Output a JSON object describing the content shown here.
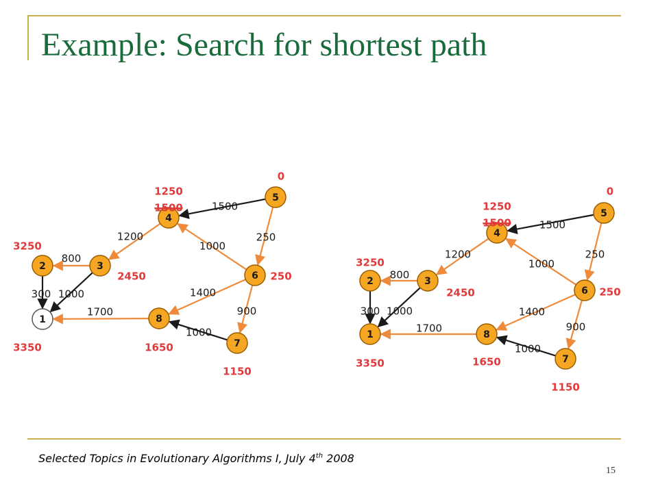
{
  "slide": {
    "title": "Example: Search for shortest path",
    "footer_text": "Selected Topics in Evolutionary Algorithms I, July 4",
    "footer_sup": "th",
    "footer_year": " 2008",
    "page_number": "15"
  },
  "colors": {
    "node_fill": "#f5a623",
    "node_stroke": "#9a5c00",
    "start_node_fill": "#ffffff",
    "orange_edge": "#ef8a3a",
    "black_edge": "#1a1a1a",
    "distance_text": "#e03a3a",
    "title": "#1a6b3c",
    "frame": "#c9ad4f"
  },
  "graphs": [
    {
      "nodes": [
        {
          "id": "1",
          "label": "1",
          "orange": false,
          "distance": "3350"
        },
        {
          "id": "2",
          "label": "2",
          "orange": true,
          "distance": "3250"
        },
        {
          "id": "3",
          "label": "3",
          "orange": true,
          "distance": "2450"
        },
        {
          "id": "4",
          "label": "4",
          "orange": true,
          "distance": "1250",
          "struck_distance": "1500"
        },
        {
          "id": "5",
          "label": "5",
          "orange": true,
          "distance": "0"
        },
        {
          "id": "6",
          "label": "6",
          "orange": true,
          "distance": "250"
        },
        {
          "id": "7",
          "label": "7",
          "orange": true,
          "distance": "1150"
        },
        {
          "id": "8",
          "label": "8",
          "orange": true,
          "distance": "1650"
        }
      ],
      "edges": [
        {
          "from": "5",
          "to": "4",
          "weight": "1500",
          "color": "black"
        },
        {
          "from": "5",
          "to": "6",
          "weight": "250",
          "color": "orange"
        },
        {
          "from": "6",
          "to": "4",
          "weight": "1000",
          "color": "orange"
        },
        {
          "from": "4",
          "to": "3",
          "weight": "1200",
          "color": "orange"
        },
        {
          "from": "3",
          "to": "2",
          "weight": "800",
          "color": "orange"
        },
        {
          "from": "2",
          "to": "1",
          "weight": "300",
          "color": "black"
        },
        {
          "from": "3",
          "to": "1",
          "weight": "1000",
          "color": "black"
        },
        {
          "from": "6",
          "to": "8",
          "weight": "1400",
          "color": "orange"
        },
        {
          "from": "6",
          "to": "7",
          "weight": "900",
          "color": "orange"
        },
        {
          "from": "7",
          "to": "8",
          "weight": "1000",
          "color": "black"
        },
        {
          "from": "8",
          "to": "1",
          "weight": "1700",
          "color": "orange"
        }
      ]
    },
    {
      "nodes": [
        {
          "id": "1",
          "label": "1",
          "orange": true,
          "distance": "3350"
        },
        {
          "id": "2",
          "label": "2",
          "orange": true,
          "distance": "3250"
        },
        {
          "id": "3",
          "label": "3",
          "orange": true,
          "distance": "2450"
        },
        {
          "id": "4",
          "label": "4",
          "orange": true,
          "distance": "1250",
          "struck_distance": "1500"
        },
        {
          "id": "5",
          "label": "5",
          "orange": true,
          "distance": "0"
        },
        {
          "id": "6",
          "label": "6",
          "orange": true,
          "distance": "250"
        },
        {
          "id": "7",
          "label": "7",
          "orange": true,
          "distance": "1150"
        },
        {
          "id": "8",
          "label": "8",
          "orange": true,
          "distance": "1650"
        }
      ],
      "edges": [
        {
          "from": "5",
          "to": "4",
          "weight": "1500",
          "color": "black"
        },
        {
          "from": "5",
          "to": "6",
          "weight": "250",
          "color": "orange"
        },
        {
          "from": "6",
          "to": "4",
          "weight": "1000",
          "color": "orange"
        },
        {
          "from": "4",
          "to": "3",
          "weight": "1200",
          "color": "orange"
        },
        {
          "from": "3",
          "to": "2",
          "weight": "800",
          "color": "orange"
        },
        {
          "from": "2",
          "to": "1",
          "weight": "300",
          "color": "black"
        },
        {
          "from": "3",
          "to": "1",
          "weight": "1000",
          "color": "black"
        },
        {
          "from": "6",
          "to": "8",
          "weight": "1400",
          "color": "orange"
        },
        {
          "from": "6",
          "to": "7",
          "weight": "900",
          "color": "orange"
        },
        {
          "from": "7",
          "to": "8",
          "weight": "1000",
          "color": "black"
        },
        {
          "from": "8",
          "to": "1",
          "weight": "1700",
          "color": "orange"
        }
      ]
    }
  ]
}
